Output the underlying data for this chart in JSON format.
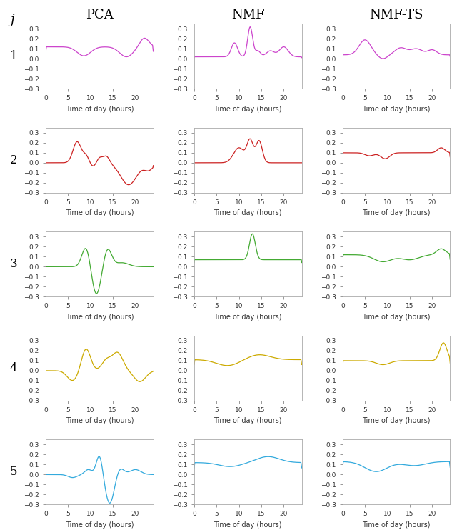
{
  "title_cols": [
    "PCA",
    "NMF",
    "NMF-TS"
  ],
  "row_labels": [
    "1",
    "2",
    "3",
    "4",
    "5"
  ],
  "col_label": "j",
  "xlabel": "Time of day (hours)",
  "colors": [
    "#cc44cc",
    "#cc2222",
    "#44aa33",
    "#ccaa00",
    "#33aadd"
  ],
  "ylim": [
    -0.3,
    0.35
  ],
  "yticks": [
    -0.3,
    -0.2,
    -0.1,
    0.0,
    0.1,
    0.2,
    0.3
  ],
  "xticks": [
    0,
    5,
    10,
    15,
    20
  ],
  "xlim": [
    0,
    24
  ],
  "figsize": [
    6.4,
    7.42
  ],
  "dpi": 100
}
